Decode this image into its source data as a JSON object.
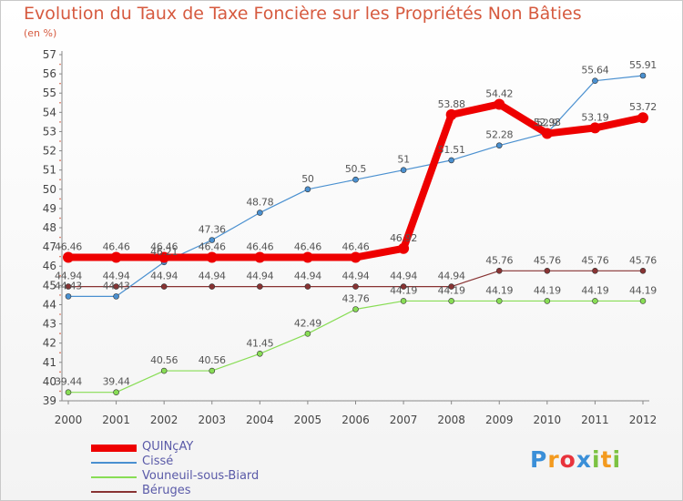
{
  "chart_data": {
    "type": "line",
    "title": "Evolution du Taux de Taxe Foncière sur les Propriétés Non Bâties",
    "subtitle": "(en %)",
    "x": [
      "2000",
      "2001",
      "2002",
      "2003",
      "2004",
      "2005",
      "2006",
      "2007",
      "2008",
      "2009",
      "2010",
      "2011",
      "2012"
    ],
    "ylim": [
      39,
      57
    ],
    "yticks": [
      "39",
      "40",
      "41",
      "42",
      "43",
      "44",
      "45",
      "46",
      "47",
      "48",
      "49",
      "50",
      "51",
      "52",
      "53",
      "54",
      "55",
      "56",
      "57"
    ],
    "series": [
      {
        "name": "QUINçAY",
        "color": "#ee0000",
        "values": [
          46.46,
          46.46,
          46.46,
          46.46,
          46.46,
          46.46,
          46.46,
          46.92,
          53.88,
          54.42,
          52.9,
          53.19,
          53.72
        ],
        "labels": [
          "46.46",
          "46.46",
          "46.46",
          "46.46",
          "46.46",
          "46.46",
          "46.46",
          "46.92",
          "53.88",
          "54.42",
          "52.9",
          "53.19",
          "53.72"
        ]
      },
      {
        "name": "Cissé",
        "color": "#4a90d0",
        "values": [
          44.43,
          44.43,
          46.21,
          47.36,
          48.78,
          50,
          50.5,
          51,
          51.51,
          52.28,
          52.93,
          55.64,
          55.91
        ],
        "labels": [
          "44.43",
          "44.43",
          "46.21",
          "47.36",
          "48.78",
          "50",
          "50.5",
          "51",
          "51.51",
          "52.28",
          "52.93",
          "55.64",
          "55.91"
        ]
      },
      {
        "name": "Vouneuil-sous-Biard",
        "color": "#88dd55",
        "values": [
          39.44,
          39.44,
          40.56,
          40.56,
          41.45,
          42.49,
          43.76,
          44.19,
          44.19,
          44.19,
          44.19,
          44.19,
          44.19
        ],
        "labels": [
          "39.44",
          "39.44",
          "40.56",
          "40.56",
          "41.45",
          "42.49",
          "43.76",
          "44.19",
          "44.19",
          "44.19",
          "44.19",
          "44.19",
          "44.19"
        ]
      },
      {
        "name": "Béruges",
        "color": "#883333",
        "values": [
          44.94,
          44.94,
          44.94,
          44.94,
          44.94,
          44.94,
          44.94,
          44.94,
          44.94,
          45.76,
          45.76,
          45.76,
          45.76
        ],
        "labels": [
          "44.94",
          "44.94",
          "44.94",
          "44.94",
          "44.94",
          "44.94",
          "44.94",
          "44.94",
          "44.94",
          "45.76",
          "45.76",
          "45.76",
          "45.76"
        ]
      }
    ],
    "grid": false,
    "legend": "bottom-left"
  },
  "logo": {
    "letters": [
      "P",
      "r",
      "o",
      "x",
      "i",
      "t",
      "i"
    ],
    "colors": [
      "#3a8fd8",
      "#f39a1e",
      "#e8333c",
      "#3a8fd8",
      "#7cc242",
      "#f39a1e",
      "#7cc242"
    ]
  }
}
